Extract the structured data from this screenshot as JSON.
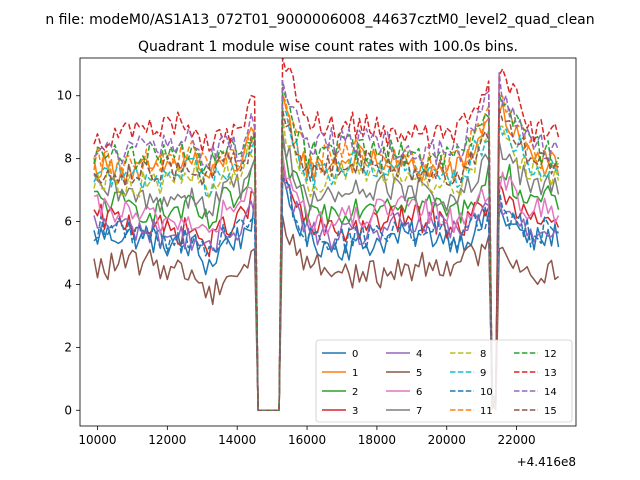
{
  "figure": {
    "suptitle": "n file: modeM0/AS1A13_072T01_9000006008_44637cztM0_level2_quad_clean",
    "title": "Quadrant 1 module wise count rates with 100.0s bins."
  },
  "chart_data": {
    "type": "line",
    "title": "Quadrant 1 module wise count rates with 100.0s bins.",
    "xlabel": "",
    "ylabel": "",
    "x_offset_label": "+4.416e8",
    "xlim": [
      9500,
      23700
    ],
    "ylim": [
      -0.5,
      11.2
    ],
    "xticks": [
      10000,
      12000,
      14000,
      16000,
      18000,
      20000,
      22000
    ],
    "yticks": [
      0,
      2,
      4,
      6,
      8,
      10
    ],
    "x_range": [
      9900,
      23200
    ],
    "bin_s": 100,
    "grid": false,
    "legend_position": "lower-right",
    "legend_columns": 4,
    "gaps": [
      {
        "start": 14550,
        "end": 15200,
        "value": 0
      },
      {
        "start": 21250,
        "end": 21420,
        "value": 0
      }
    ],
    "series": [
      {
        "name": "0",
        "color": "#1f77b4",
        "style": "solid",
        "level": 5.4
      },
      {
        "name": "1",
        "color": "#ff7f0e",
        "style": "solid",
        "level": 7.8
      },
      {
        "name": "2",
        "color": "#2ca02c",
        "style": "solid",
        "level": 6.5
      },
      {
        "name": "3",
        "color": "#d62728",
        "style": "solid",
        "level": 5.9
      },
      {
        "name": "4",
        "color": "#9467bd",
        "style": "solid",
        "level": 5.7
      },
      {
        "name": "5",
        "color": "#8c564b",
        "style": "solid",
        "level": 4.5
      },
      {
        "name": "6",
        "color": "#e377c2",
        "style": "solid",
        "level": 6.2
      },
      {
        "name": "7",
        "color": "#7f7f7f",
        "style": "solid",
        "level": 6.9
      },
      {
        "name": "8",
        "color": "#bcbd22",
        "style": "dashed",
        "level": 7.4
      },
      {
        "name": "9",
        "color": "#17becf",
        "style": "dashed",
        "level": 7.6
      },
      {
        "name": "10",
        "color": "#1f77b4",
        "style": "dashed",
        "level": 5.6
      },
      {
        "name": "11",
        "color": "#ff7f0e",
        "style": "dashed",
        "level": 8.0
      },
      {
        "name": "12",
        "color": "#2ca02c",
        "style": "dashed",
        "level": 8.2
      },
      {
        "name": "13",
        "color": "#d62728",
        "style": "dashed",
        "level": 8.9
      },
      {
        "name": "14",
        "color": "#9467bd",
        "style": "dashed",
        "level": 8.4
      },
      {
        "name": "15",
        "color": "#8c564b",
        "style": "dashed",
        "level": 7.7
      }
    ]
  }
}
